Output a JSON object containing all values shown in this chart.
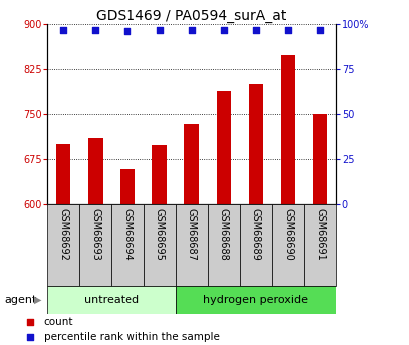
{
  "title": "GDS1469 / PA0594_surA_at",
  "categories": [
    "GSM68692",
    "GSM68693",
    "GSM68694",
    "GSM68695",
    "GSM68687",
    "GSM68688",
    "GSM68689",
    "GSM68690",
    "GSM68691"
  ],
  "bar_values": [
    700,
    710,
    658,
    698,
    733,
    788,
    800,
    848,
    750
  ],
  "percentile_values": [
    97,
    97,
    96,
    97,
    97,
    97,
    97,
    97,
    97
  ],
  "bar_color": "#cc0000",
  "dot_color": "#1111cc",
  "ylim_left": [
    600,
    900
  ],
  "yticks_left": [
    600,
    675,
    750,
    825,
    900
  ],
  "ylim_right": [
    0,
    100
  ],
  "yticks_right": [
    0,
    25,
    50,
    75,
    100
  ],
  "group1_label": "untreated",
  "group2_label": "hydrogen peroxide",
  "group1_indices": [
    0,
    1,
    2,
    3
  ],
  "group2_indices": [
    4,
    5,
    6,
    7,
    8
  ],
  "group1_color": "#ccffcc",
  "group2_color": "#55dd55",
  "bar_bg_color": "#cccccc",
  "agent_label": "agent",
  "legend_count_label": "count",
  "legend_percentile_label": "percentile rank within the sample",
  "title_fontsize": 10,
  "axis_tick_fontsize": 7,
  "label_fontsize": 7,
  "group_fontsize": 8,
  "axis_label_color_left": "#cc0000",
  "axis_label_color_right": "#1111cc",
  "bg_color": "#ffffff"
}
